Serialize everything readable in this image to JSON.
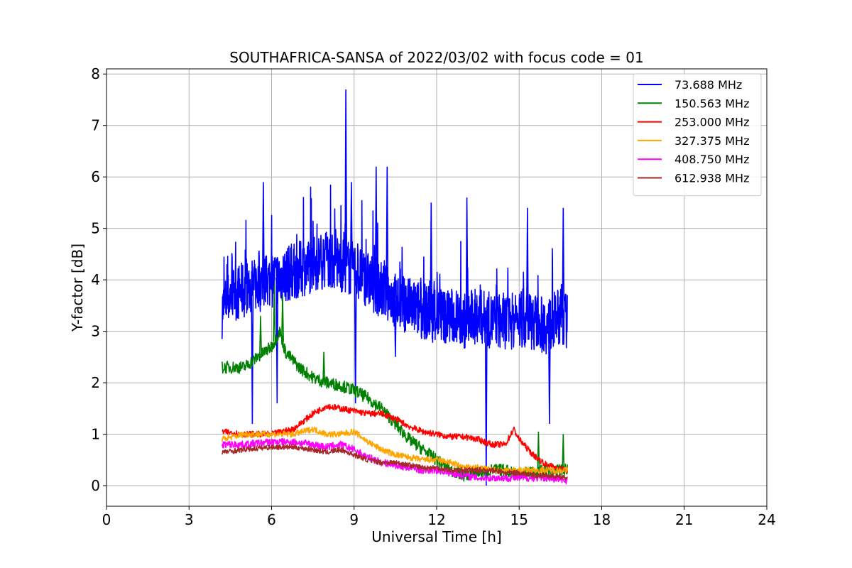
{
  "chart_data": {
    "type": "line",
    "title": "SOUTHAFRICA-SANSA of 2022/03/02 with focus code = 01",
    "xlabel": "Universal Time [h]",
    "ylabel": "Y-factor [dB]",
    "xlim": [
      0,
      24
    ],
    "ylim": [
      -0.4,
      8.1
    ],
    "xticks": [
      "0",
      "3",
      "6",
      "9",
      "12",
      "15",
      "18",
      "21",
      "24"
    ],
    "yticks": [
      "0",
      "1",
      "2",
      "3",
      "4",
      "5",
      "6",
      "7",
      "8"
    ],
    "grid": true,
    "legend_position": "top-right",
    "series": [
      {
        "name": " 73.688 MHz",
        "color": "#0000ff",
        "x": [
          4.2,
          4.5,
          5.0,
          5.5,
          6.0,
          6.5,
          7.0,
          7.5,
          8.0,
          8.5,
          9.0,
          9.5,
          10.0,
          10.5,
          11.0,
          11.5,
          12.0,
          12.5,
          13.0,
          13.5,
          14.0,
          14.5,
          15.0,
          15.5,
          16.0,
          16.5,
          16.75
        ],
        "values": [
          3.4,
          3.7,
          3.8,
          3.9,
          4.0,
          4.1,
          4.2,
          4.3,
          4.4,
          4.3,
          4.2,
          4.0,
          3.8,
          3.6,
          3.5,
          3.4,
          3.3,
          3.3,
          3.2,
          3.3,
          3.2,
          3.2,
          3.2,
          3.2,
          3.1,
          3.3,
          3.2
        ],
        "spikes": [
          {
            "x": 5.7,
            "y": 5.9
          },
          {
            "x": 8.7,
            "y": 7.7
          },
          {
            "x": 8.9,
            "y": 5.9
          },
          {
            "x": 9.8,
            "y": 6.2
          },
          {
            "x": 10.2,
            "y": 6.2
          },
          {
            "x": 11.8,
            "y": 5.5
          },
          {
            "x": 13.1,
            "y": 5.6
          },
          {
            "x": 15.3,
            "y": 5.4
          },
          {
            "x": 16.6,
            "y": 5.4
          },
          {
            "x": 5.3,
            "y": 1.2
          },
          {
            "x": 13.8,
            "y": 0.0
          },
          {
            "x": 16.1,
            "y": 1.2
          },
          {
            "x": 9.05,
            "y": 1.6
          },
          {
            "x": 6.2,
            "y": 1.6
          },
          {
            "x": 10.5,
            "y": 2.5
          }
        ]
      },
      {
        "name": "150.563 MHz",
        "color": "#008000",
        "x": [
          4.2,
          4.5,
          5.0,
          5.5,
          6.0,
          6.3,
          6.5,
          7.0,
          7.5,
          8.0,
          8.5,
          9.0,
          9.5,
          10.0,
          10.5,
          11.0,
          11.5,
          12.0,
          12.5,
          13.0,
          13.5,
          14.0,
          14.5,
          15.0,
          15.5,
          16.0,
          16.5,
          16.75
        ],
        "values": [
          2.3,
          2.3,
          2.3,
          2.5,
          2.7,
          3.0,
          2.6,
          2.3,
          2.1,
          2.0,
          1.95,
          1.85,
          1.7,
          1.5,
          1.2,
          0.9,
          0.7,
          0.5,
          0.3,
          0.2,
          0.25,
          0.3,
          0.3,
          0.25,
          0.25,
          0.3,
          0.3,
          0.3
        ],
        "spikes": [
          {
            "x": 5.6,
            "y": 3.3
          },
          {
            "x": 6.1,
            "y": 3.9
          },
          {
            "x": 6.4,
            "y": 3.7
          },
          {
            "x": 7.9,
            "y": 2.6
          },
          {
            "x": 16.6,
            "y": 1.0
          },
          {
            "x": 15.7,
            "y": 1.05
          }
        ]
      },
      {
        "name": "253.000 MHz",
        "color": "#ff0000",
        "x": [
          4.2,
          5.0,
          6.0,
          6.8,
          7.5,
          8.0,
          8.5,
          9.0,
          9.5,
          10.0,
          10.5,
          11.0,
          11.5,
          12.0,
          12.5,
          13.0,
          13.5,
          14.0,
          14.5,
          14.8,
          15.0,
          15.5,
          16.0,
          16.75
        ],
        "values": [
          1.05,
          1.0,
          1.0,
          1.1,
          1.4,
          1.55,
          1.5,
          1.45,
          1.4,
          1.4,
          1.3,
          1.15,
          1.05,
          1.0,
          0.95,
          0.95,
          0.9,
          0.8,
          0.8,
          1.1,
          0.9,
          0.6,
          0.4,
          0.3
        ]
      },
      {
        "name": "327.375 MHz",
        "color": "#ffa500",
        "x": [
          4.2,
          5.0,
          6.0,
          6.8,
          7.5,
          8.0,
          8.5,
          9.0,
          9.5,
          10.0,
          10.5,
          11.0,
          11.5,
          12.0,
          12.5,
          13.0,
          13.5,
          14.0,
          14.5,
          15.0,
          15.5,
          16.0,
          16.75
        ],
        "values": [
          0.9,
          1.0,
          1.0,
          1.0,
          1.1,
          1.0,
          1.0,
          1.05,
          0.85,
          0.7,
          0.6,
          0.55,
          0.5,
          0.5,
          0.45,
          0.35,
          0.35,
          0.3,
          0.3,
          0.3,
          0.3,
          0.3,
          0.3
        ]
      },
      {
        "name": "408.750 MHz",
        "color": "#ff00ff",
        "x": [
          4.2,
          5.0,
          6.0,
          6.8,
          7.5,
          8.0,
          8.5,
          9.0,
          9.5,
          10.0,
          10.5,
          11.0,
          11.5,
          12.0,
          12.5,
          13.0,
          13.5,
          14.0,
          14.5,
          15.0,
          15.5,
          16.0,
          16.75
        ],
        "values": [
          0.8,
          0.8,
          0.85,
          0.85,
          0.8,
          0.75,
          0.8,
          0.7,
          0.55,
          0.45,
          0.4,
          0.35,
          0.3,
          0.3,
          0.25,
          0.2,
          0.15,
          0.15,
          0.15,
          0.15,
          0.15,
          0.15,
          0.1
        ]
      },
      {
        "name": "612.938 MHz",
        "color": "#a52a2a",
        "x": [
          4.2,
          5.0,
          6.0,
          6.8,
          7.5,
          8.0,
          8.5,
          9.0,
          9.5,
          10.0,
          10.5,
          11.0,
          11.5,
          12.0,
          12.5,
          13.0,
          13.5,
          14.0,
          14.5,
          15.0,
          15.5,
          16.0,
          16.75
        ],
        "values": [
          0.65,
          0.7,
          0.75,
          0.75,
          0.7,
          0.65,
          0.7,
          0.6,
          0.5,
          0.45,
          0.45,
          0.4,
          0.35,
          0.35,
          0.3,
          0.3,
          0.3,
          0.3,
          0.25,
          0.25,
          0.2,
          0.2,
          0.15
        ]
      }
    ]
  }
}
